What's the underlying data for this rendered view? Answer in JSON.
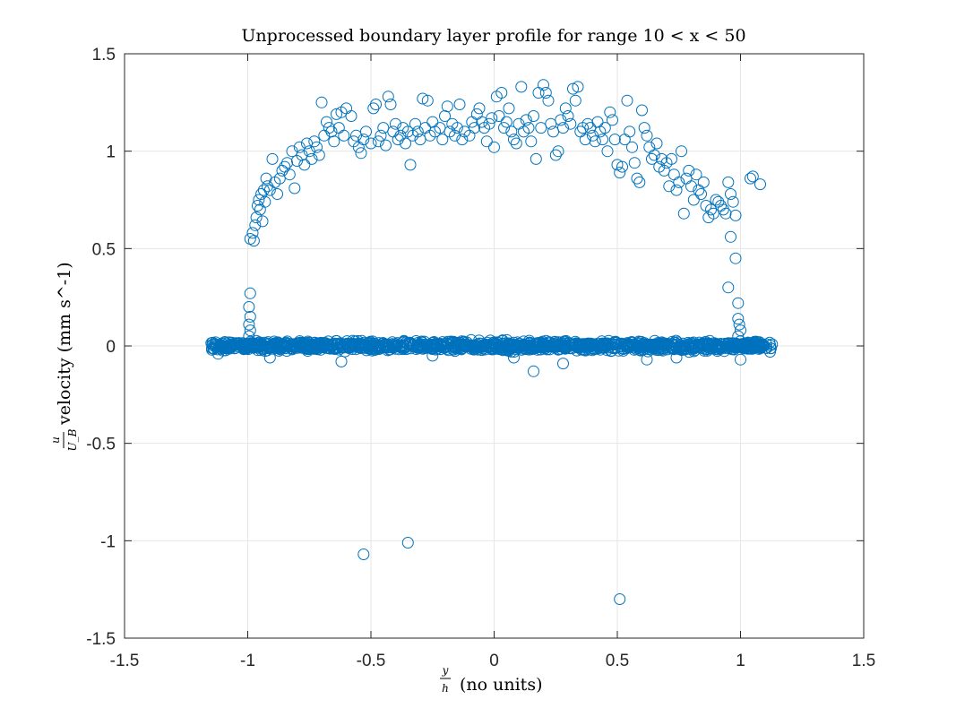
{
  "chart_data": {
    "type": "scatter",
    "title": "Unprocessed boundary layer profile for range 10 < x < 50",
    "xlabel": {
      "fraction_numerator": "y",
      "fraction_denominator": "h",
      "text": "(no units)"
    },
    "ylabel": {
      "fraction_numerator": "u",
      "fraction_denominator": "U_B",
      "text": "velocity (mm s^-1)"
    },
    "xlim": [
      -1.5,
      1.5
    ],
    "ylim": [
      -1.5,
      1.5
    ],
    "xticks": [
      "-1.5",
      "-1",
      "-0.5",
      "0",
      "0.5",
      "1",
      "1.5"
    ],
    "yticks": [
      "1.5",
      "1",
      "0.5",
      "0",
      "-0.5",
      "-1",
      "-1.5"
    ],
    "grid": true,
    "marker": "open-circle",
    "color": "#0072BD",
    "series": [
      {
        "points": [
          [
            -0.99,
            0.55
          ],
          [
            -0.98,
            0.58
          ],
          [
            -0.975,
            0.54
          ],
          [
            -0.97,
            0.62
          ],
          [
            -0.965,
            0.66
          ],
          [
            -0.96,
            0.72
          ],
          [
            -0.955,
            0.75
          ],
          [
            -0.95,
            0.7
          ],
          [
            -0.945,
            0.78
          ],
          [
            -0.94,
            0.64
          ],
          [
            -0.935,
            0.8
          ],
          [
            -0.93,
            0.74
          ],
          [
            -0.925,
            0.86
          ],
          [
            -0.92,
            0.82
          ],
          [
            -0.91,
            0.8
          ],
          [
            -0.9,
            0.96
          ],
          [
            -0.89,
            0.84
          ],
          [
            -0.88,
            0.78
          ],
          [
            -0.87,
            0.86
          ],
          [
            -0.86,
            0.9
          ],
          [
            -0.85,
            0.92
          ],
          [
            -0.84,
            0.94
          ],
          [
            -0.83,
            0.88
          ],
          [
            -0.82,
            1.0
          ],
          [
            -0.81,
            0.81
          ],
          [
            -0.8,
            0.95
          ],
          [
            -0.79,
            1.02
          ],
          [
            -0.78,
            0.98
          ],
          [
            -0.77,
            0.93
          ],
          [
            -0.76,
            1.04
          ],
          [
            -0.75,
            1.0
          ],
          [
            -0.74,
            0.96
          ],
          [
            -0.73,
            1.05
          ],
          [
            -0.72,
            1.02
          ],
          [
            -0.71,
            0.98
          ],
          [
            -0.7,
            1.25
          ],
          [
            -0.69,
            1.08
          ],
          [
            -0.68,
            1.15
          ],
          [
            -0.67,
            1.12
          ],
          [
            -0.66,
            1.1
          ],
          [
            -0.65,
            1.05
          ],
          [
            -0.64,
            1.19
          ],
          [
            -0.63,
            1.12
          ],
          [
            -0.62,
            1.2
          ],
          [
            -0.61,
            1.08
          ],
          [
            -0.6,
            1.22
          ],
          [
            -0.58,
            1.18
          ],
          [
            -0.57,
            1.05
          ],
          [
            -0.56,
            1.08
          ],
          [
            -0.55,
            1.02
          ],
          [
            -0.54,
            0.99
          ],
          [
            -0.53,
            1.06
          ],
          [
            -0.52,
            1.1
          ],
          [
            -0.5,
            1.04
          ],
          [
            -0.49,
            1.22
          ],
          [
            -0.48,
            1.24
          ],
          [
            -0.47,
            1.05
          ],
          [
            -0.46,
            1.08
          ],
          [
            -0.45,
            1.12
          ],
          [
            -0.44,
            1.03
          ],
          [
            -0.43,
            1.28
          ],
          [
            -0.42,
            1.24
          ],
          [
            -0.41,
            1.1
          ],
          [
            -0.4,
            1.14
          ],
          [
            -0.39,
            1.06
          ],
          [
            -0.38,
            1.08
          ],
          [
            -0.37,
            1.12
          ],
          [
            -0.36,
            1.04
          ],
          [
            -0.35,
            1.1
          ],
          [
            -0.34,
            0.93
          ],
          [
            -0.33,
            1.08
          ],
          [
            -0.32,
            1.14
          ],
          [
            -0.31,
            1.1
          ],
          [
            -0.3,
            1.06
          ],
          [
            -0.29,
            1.27
          ],
          [
            -0.28,
            1.12
          ],
          [
            -0.27,
            1.26
          ],
          [
            -0.26,
            1.08
          ],
          [
            -0.25,
            1.15
          ],
          [
            -0.24,
            1.1
          ],
          [
            -0.22,
            1.12
          ],
          [
            -0.21,
            1.06
          ],
          [
            -0.2,
            1.18
          ],
          [
            -0.19,
            1.23
          ],
          [
            -0.18,
            1.1
          ],
          [
            -0.17,
            1.14
          ],
          [
            -0.16,
            1.08
          ],
          [
            -0.15,
            1.12
          ],
          [
            -0.14,
            1.24
          ],
          [
            -0.13,
            1.06
          ],
          [
            -0.12,
            1.1
          ],
          [
            -0.1,
            1.08
          ],
          [
            -0.09,
            1.15
          ],
          [
            -0.08,
            1.12
          ],
          [
            -0.07,
            1.19
          ],
          [
            -0.06,
            1.22
          ],
          [
            -0.05,
            1.15
          ],
          [
            -0.04,
            1.12
          ],
          [
            -0.03,
            1.05
          ],
          [
            -0.02,
            1.14
          ],
          [
            -0.01,
            1.17
          ],
          [
            0.0,
            1.02
          ],
          [
            0.01,
            1.28
          ],
          [
            0.02,
            1.18
          ],
          [
            0.03,
            1.3
          ],
          [
            0.04,
            1.12
          ],
          [
            0.05,
            1.15
          ],
          [
            0.06,
            1.22
          ],
          [
            0.07,
            1.1
          ],
          [
            0.08,
            1.06
          ],
          [
            0.09,
            1.04
          ],
          [
            0.1,
            1.14
          ],
          [
            0.11,
            1.33
          ],
          [
            0.12,
            1.1
          ],
          [
            0.13,
            1.16
          ],
          [
            0.14,
            1.12
          ],
          [
            0.15,
            1.05
          ],
          [
            0.16,
            1.18
          ],
          [
            0.17,
            0.96
          ],
          [
            0.18,
            1.3
          ],
          [
            0.19,
            1.12
          ],
          [
            0.2,
            1.34
          ],
          [
            0.21,
            1.3
          ],
          [
            0.22,
            1.26
          ],
          [
            0.23,
            1.14
          ],
          [
            0.24,
            1.1
          ],
          [
            0.25,
            0.98
          ],
          [
            0.26,
            1.0
          ],
          [
            0.27,
            1.16
          ],
          [
            0.28,
            1.12
          ],
          [
            0.29,
            1.22
          ],
          [
            0.3,
            1.18
          ],
          [
            0.31,
            1.14
          ],
          [
            0.32,
            1.32
          ],
          [
            0.33,
            1.26
          ],
          [
            0.34,
            1.33
          ],
          [
            0.35,
            1.1
          ],
          [
            0.36,
            1.12
          ],
          [
            0.37,
            1.06
          ],
          [
            0.38,
            1.14
          ],
          [
            0.39,
            1.12
          ],
          [
            0.4,
            1.08
          ],
          [
            0.41,
            1.05
          ],
          [
            0.42,
            1.15
          ],
          [
            0.43,
            1.1
          ],
          [
            0.44,
            1.06
          ],
          [
            0.45,
            1.12
          ],
          [
            0.46,
            1.0
          ],
          [
            0.47,
            1.2
          ],
          [
            0.48,
            1.16
          ],
          [
            0.49,
            1.06
          ],
          [
            0.5,
            0.93
          ],
          [
            0.51,
            0.89
          ],
          [
            0.52,
            0.92
          ],
          [
            0.53,
            1.06
          ],
          [
            0.54,
            1.26
          ],
          [
            0.55,
            1.1
          ],
          [
            0.56,
            1.02
          ],
          [
            0.57,
            0.94
          ],
          [
            0.58,
            0.86
          ],
          [
            0.59,
            0.84
          ],
          [
            0.6,
            1.21
          ],
          [
            0.61,
            1.12
          ],
          [
            0.62,
            1.08
          ],
          [
            0.63,
            1.02
          ],
          [
            0.64,
            0.96
          ],
          [
            0.65,
            0.98
          ],
          [
            0.66,
            1.04
          ],
          [
            0.67,
            0.92
          ],
          [
            0.68,
            0.96
          ],
          [
            0.69,
            0.9
          ],
          [
            0.7,
            0.94
          ],
          [
            0.71,
            0.82
          ],
          [
            0.72,
            0.96
          ],
          [
            0.73,
            0.88
          ],
          [
            0.74,
            0.8
          ],
          [
            0.75,
            0.84
          ],
          [
            0.76,
            1.0
          ],
          [
            0.77,
            0.68
          ],
          [
            0.78,
            0.86
          ],
          [
            0.79,
            0.9
          ],
          [
            0.8,
            0.82
          ],
          [
            0.81,
            0.75
          ],
          [
            0.82,
            0.88
          ],
          [
            0.83,
            0.8
          ],
          [
            0.84,
            0.78
          ],
          [
            0.85,
            0.84
          ],
          [
            0.86,
            0.72
          ],
          [
            0.87,
            0.66
          ],
          [
            0.88,
            0.7
          ],
          [
            0.89,
            0.68
          ],
          [
            0.9,
            0.75
          ],
          [
            0.91,
            0.74
          ],
          [
            0.92,
            0.72
          ],
          [
            0.93,
            0.7
          ],
          [
            0.94,
            0.68
          ],
          [
            0.95,
            0.84
          ],
          [
            0.96,
            0.78
          ],
          [
            0.97,
            0.74
          ],
          [
            0.98,
            0.67
          ],
          [
            0.96,
            0.56
          ],
          [
            0.98,
            0.45
          ],
          [
            0.95,
            0.3
          ],
          [
            0.99,
            0.22
          ],
          [
            1.04,
            0.86
          ],
          [
            1.05,
            0.87
          ],
          [
            1.08,
            0.83
          ],
          [
            -0.99,
            0.27
          ],
          [
            -0.995,
            0.2
          ],
          [
            -0.99,
            0.15
          ],
          [
            -0.995,
            0.11
          ],
          [
            -0.99,
            0.08
          ],
          [
            -0.995,
            0.05
          ],
          [
            0.99,
            0.14
          ],
          [
            0.995,
            0.11
          ],
          [
            1.0,
            0.08
          ],
          [
            0.99,
            0.05
          ],
          [
            1.0,
            -0.07
          ],
          [
            -0.53,
            -1.07
          ],
          [
            -0.35,
            -1.01
          ],
          [
            0.51,
            -1.3
          ],
          [
            0.16,
            -0.13
          ],
          [
            -0.62,
            -0.08
          ],
          [
            0.28,
            -0.09
          ],
          [
            -0.91,
            -0.06
          ],
          [
            0.62,
            -0.07
          ],
          [
            0.08,
            -0.06
          ],
          [
            -0.25,
            -0.05
          ],
          [
            0.74,
            -0.06
          ],
          [
            -1.12,
            -0.04
          ],
          [
            1.12,
            -0.03
          ]
        ]
      }
    ],
    "band": {
      "description_free": true,
      "x_range": [
        -1.15,
        1.13
      ],
      "y_center": 0.0,
      "y_spread": 0.035,
      "count": 1400
    }
  }
}
